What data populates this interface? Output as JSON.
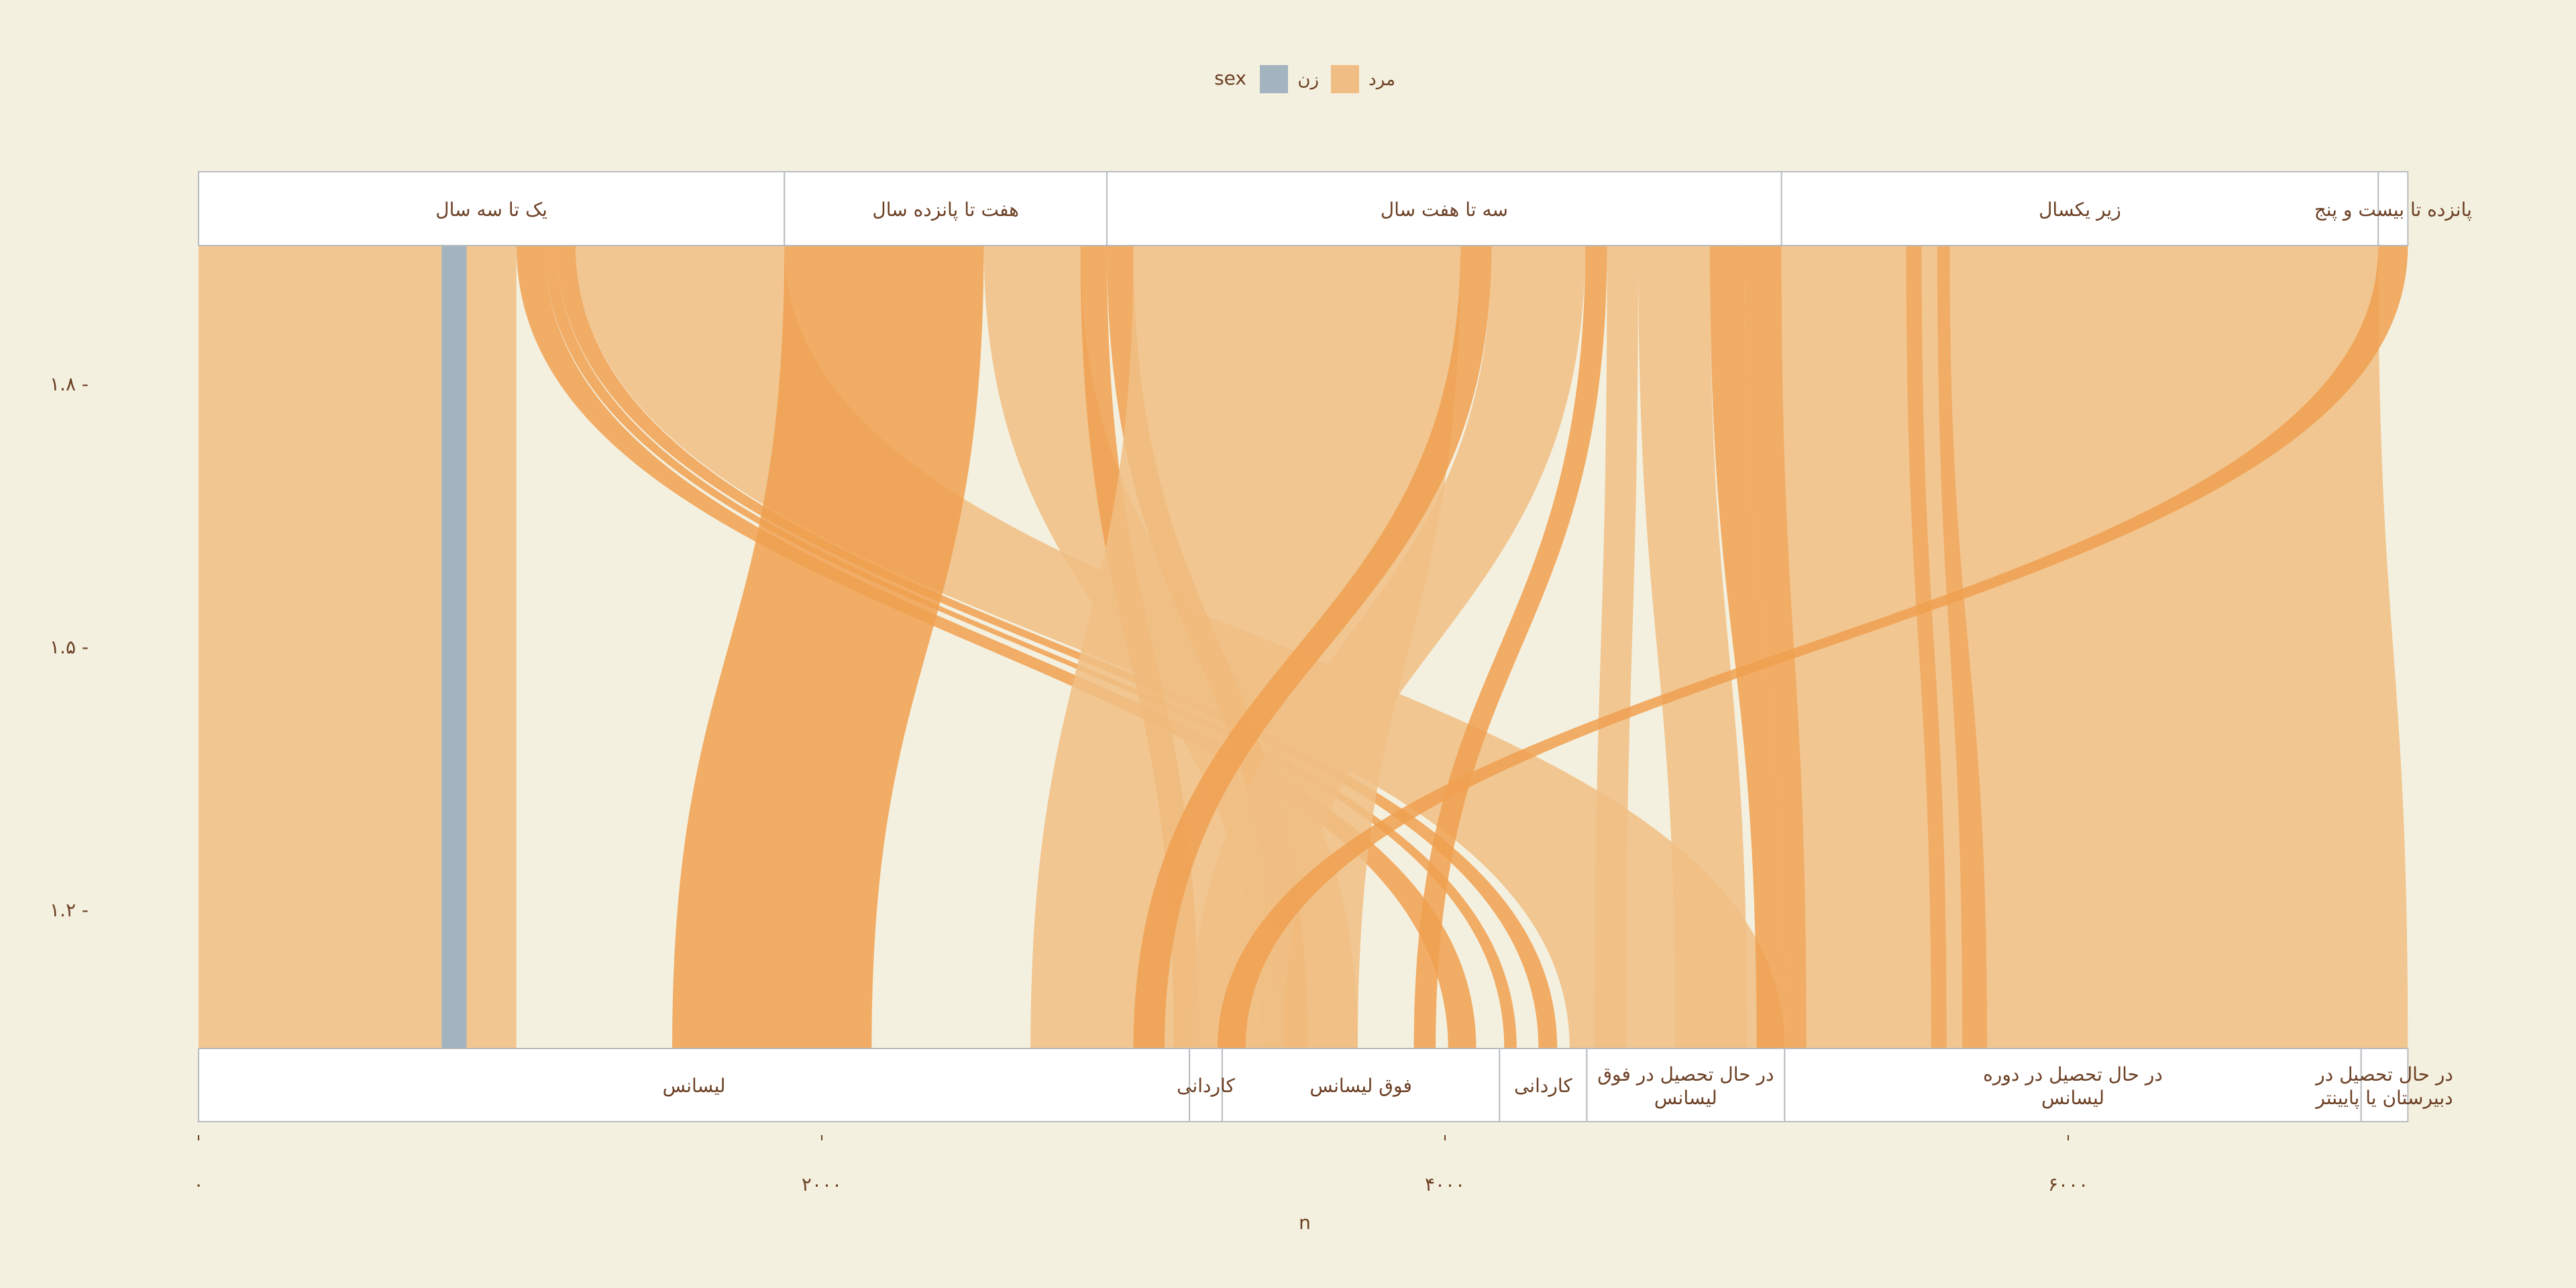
{
  "chart_data": {
    "type": "parallel-sets",
    "xlabel": "n",
    "x_ticks": [
      "۰",
      "۲۰۰۰",
      "۴۰۰۰",
      "۶۰۰۰"
    ],
    "x_tick_values": [
      0,
      2000,
      4000,
      6000
    ],
    "xlim": [
      0,
      7100
    ],
    "y_ticks": [
      "۱.۸",
      "۱.۵",
      "۱.۲"
    ],
    "legend": {
      "title": "sex",
      "position": "top",
      "items": [
        {
          "label": "زن",
          "color": "#a3b3bf"
        },
        {
          "label": "مرد",
          "color": "#f0be84"
        }
      ]
    },
    "top_axis": {
      "categories": [
        {
          "label": "یک تا سه سال",
          "start": 0,
          "end": 1880
        },
        {
          "label": "هفت تا پانزده سال",
          "start": 1880,
          "end": 2915
        },
        {
          "label": "سه تا هفت سال",
          "start": 2915,
          "end": 5080
        },
        {
          "label": "زیر یکسال",
          "start": 5080,
          "end": 6995
        },
        {
          "label": "پانزده تا بیست و پنج",
          "start": 6995,
          "end": 7090
        }
      ]
    },
    "bottom_axis": {
      "categories": [
        {
          "label": "لیسانس",
          "start": 0,
          "end": 3180
        },
        {
          "label": "کاردانی",
          "start": 3180,
          "end": 3285
        },
        {
          "label": "فوق لیسانس",
          "start": 3285,
          "end": 4175
        },
        {
          "label": "کاردانی",
          "start": 4175,
          "end": 4455
        },
        {
          "label": "در حال تحصیل در فوق لیسانس",
          "start": 4455,
          "end": 5090
        },
        {
          "label": "در حال تحصیل در دوره لیسانس",
          "start": 5090,
          "end": 6940
        },
        {
          "label": "در حال تحصیل در دبیرستان یا پایینتر",
          "start": 6940,
          "end": 7090
        }
      ]
    },
    "ribbons": [
      {
        "sex": "مرد",
        "top": [
          0,
          780
        ],
        "bottom": [
          0,
          780
        ],
        "emphasis": false
      },
      {
        "sex": "زن",
        "top": [
          780,
          860
        ],
        "bottom": [
          780,
          860
        ],
        "emphasis": false
      },
      {
        "sex": "مرد",
        "top": [
          860,
          1020
        ],
        "bottom": [
          860,
          1020
        ],
        "emphasis": false
      },
      {
        "sex": "مرد",
        "top": [
          1020,
          1110
        ],
        "bottom": [
          4010,
          4100
        ],
        "emphasis": true
      },
      {
        "sex": "مرد",
        "top": [
          1110,
          1150
        ],
        "bottom": [
          4190,
          4230
        ],
        "emphasis": true
      },
      {
        "sex": "مرد",
        "top": [
          1150,
          1210
        ],
        "bottom": [
          4300,
          4360
        ],
        "emphasis": true
      },
      {
        "sex": "مرد",
        "top": [
          1210,
          1880
        ],
        "bottom": [
          4400,
          5090
        ],
        "emphasis": false
      },
      {
        "sex": "مرد",
        "top": [
          1880,
          2520
        ],
        "bottom": [
          1520,
          2160
        ],
        "emphasis": true
      },
      {
        "sex": "مرد",
        "top": [
          2520,
          2830
        ],
        "bottom": [
          3410,
          3720
        ],
        "emphasis": false
      },
      {
        "sex": "مرد",
        "top": [
          2830,
          2915
        ],
        "bottom": [
          3130,
          3210
        ],
        "emphasis": true
      },
      {
        "sex": "مرد",
        "top": [
          2915,
          3000
        ],
        "bottom": [
          3470,
          3560
        ],
        "emphasis": true
      },
      {
        "sex": "مرد",
        "top": [
          3000,
          4050
        ],
        "bottom": [
          2670,
          3720
        ],
        "emphasis": false
      },
      {
        "sex": "مرد",
        "top": [
          4050,
          4150
        ],
        "bottom": [
          3000,
          3100
        ],
        "emphasis": true
      },
      {
        "sex": "مرد",
        "top": [
          4150,
          4450
        ],
        "bottom": [
          3180,
          3480
        ],
        "emphasis": false
      },
      {
        "sex": "مرد",
        "top": [
          4450,
          4520
        ],
        "bottom": [
          3900,
          3970
        ],
        "emphasis": true
      },
      {
        "sex": "مرد",
        "top": [
          4520,
          4620
        ],
        "bottom": [
          4480,
          4580
        ],
        "emphasis": false
      },
      {
        "sex": "مرد",
        "top": [
          4620,
          4850
        ],
        "bottom": [
          4740,
          4970
        ],
        "emphasis": false
      },
      {
        "sex": "مرد",
        "top": [
          4850,
          4960
        ],
        "bottom": [
          5000,
          5090
        ],
        "emphasis": true
      },
      {
        "sex": "مرد",
        "top": [
          4960,
          5080
        ],
        "bottom": [
          5090,
          5160
        ],
        "emphasis": true
      },
      {
        "sex": "مرد",
        "top": [
          5080,
          5480
        ],
        "bottom": [
          5160,
          5560
        ],
        "emphasis": false
      },
      {
        "sex": "مرد",
        "top": [
          5480,
          5530
        ],
        "bottom": [
          5560,
          5610
        ],
        "emphasis": true
      },
      {
        "sex": "مرد",
        "top": [
          5530,
          5580
        ],
        "bottom": [
          5610,
          5660
        ],
        "emphasis": false
      },
      {
        "sex": "مرد",
        "top": [
          5580,
          5620
        ],
        "bottom": [
          5660,
          5740
        ],
        "emphasis": true
      },
      {
        "sex": "مرد",
        "top": [
          5620,
          6995
        ],
        "bottom": [
          5740,
          7090
        ],
        "emphasis": false
      },
      {
        "sex": "مرد",
        "top": [
          6995,
          7090
        ],
        "bottom": [
          3270,
          3360
        ],
        "emphasis": true
      }
    ]
  }
}
